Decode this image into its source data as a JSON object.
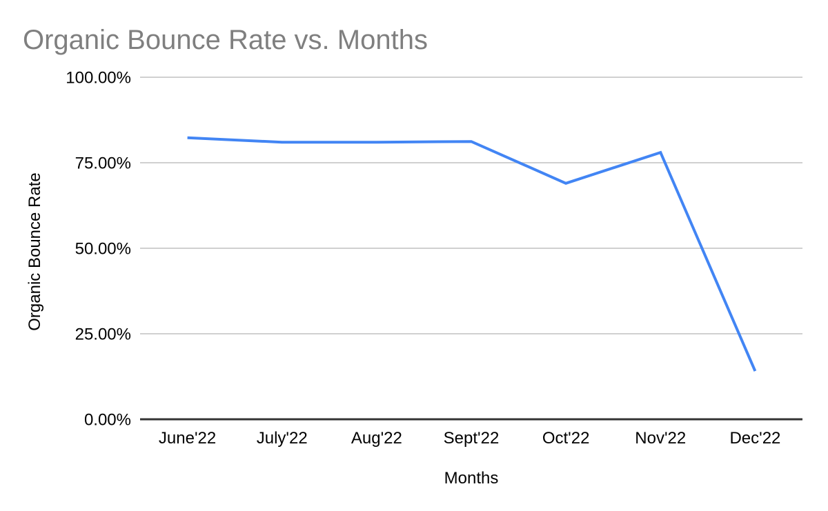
{
  "window": {
    "background": "#ffffff"
  },
  "chart": {
    "title": "Organic Bounce Rate vs. Months",
    "colors": {
      "title": "#7f7f7f",
      "series_line": "#4285f4",
      "gridline": "#d0d0d0",
      "axis_line": "#333333",
      "tick_label": "#000000",
      "axis_title": "#000000",
      "background": "#ffffff"
    }
  },
  "chart_data": {
    "type": "line",
    "title": "Organic Bounce Rate vs. Months",
    "xlabel": "Months",
    "ylabel": "Organic Bounce Rate",
    "categories": [
      "June'22",
      "July'22",
      "Aug'22",
      "Sept'22",
      "Oct'22",
      "Nov'22",
      "Dec'22"
    ],
    "series": [
      {
        "name": "Organic Bounce Rate",
        "values": [
          82.3,
          81.0,
          81.0,
          81.2,
          69.0,
          78.0,
          14.1
        ]
      }
    ],
    "unit": "%",
    "ylim": [
      0,
      100
    ],
    "yticks": [
      {
        "value": 0,
        "label": "0.00%"
      },
      {
        "value": 25,
        "label": "25.00%"
      },
      {
        "value": 50,
        "label": "50.00%"
      },
      {
        "value": 75,
        "label": "75.00%"
      },
      {
        "value": 100,
        "label": "100.00%"
      }
    ],
    "grid": true,
    "legend_position": "none"
  }
}
